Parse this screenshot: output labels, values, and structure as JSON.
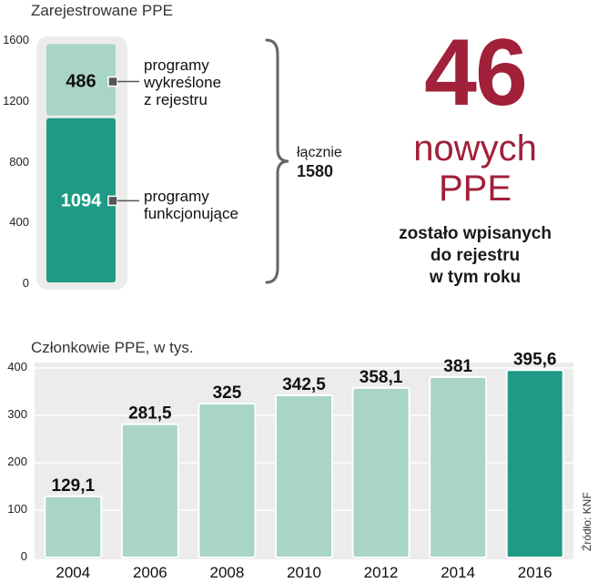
{
  "chart_data": [
    {
      "type": "bar",
      "title": "Zarejestrowane PPE",
      "stacked": true,
      "categories": [
        ""
      ],
      "series": [
        {
          "name": "programy funkcjonujące",
          "values": [
            1094
          ]
        },
        {
          "name": "programy wykreślone z rejestru",
          "values": [
            486
          ]
        }
      ],
      "ylim": [
        0,
        1600
      ],
      "yticks": [
        "1600",
        "1200",
        "800",
        "400",
        "0"
      ],
      "colors": {
        "funkcjonujace": "#1f9a85",
        "wykreslone": "#a8d5c7"
      }
    },
    {
      "type": "bar",
      "title": "Członkowie PPE, w tys.",
      "categories": [
        "2004",
        "2006",
        "2008",
        "2010",
        "2012",
        "2014",
        "2016"
      ],
      "values": [
        129.1,
        281.5,
        325,
        342.5,
        358.1,
        381,
        395.6
      ],
      "value_labels": [
        "129,1",
        "281,5",
        "325",
        "342,5",
        "358,1",
        "381",
        "395,6"
      ],
      "ylim": [
        0,
        400
      ],
      "yticks": [
        "400",
        "300",
        "200",
        "100",
        "0"
      ],
      "grid": true,
      "colors": {
        "bars": "#a8d5c7",
        "highlight": "#1f9a85"
      }
    }
  ],
  "top": {
    "title": "Zarejestrowane PPE",
    "stack_top_value": "486",
    "stack_bottom_value": "1094",
    "label_top_lines": [
      "programy",
      "wykreślone",
      "z rejestru"
    ],
    "label_bottom_lines": [
      "programy",
      "funkcjonujące"
    ],
    "total_label": "łącznie",
    "total_value": "1580"
  },
  "highlight": {
    "big_number": "46",
    "line1": "nowych",
    "line2": "PPE",
    "caption_lines": [
      "zostało wpisanych",
      "do rejestru",
      "w tym roku"
    ]
  },
  "bottom": {
    "title": "Członkowie PPE, w tys."
  },
  "source": "Źródło: KNF"
}
